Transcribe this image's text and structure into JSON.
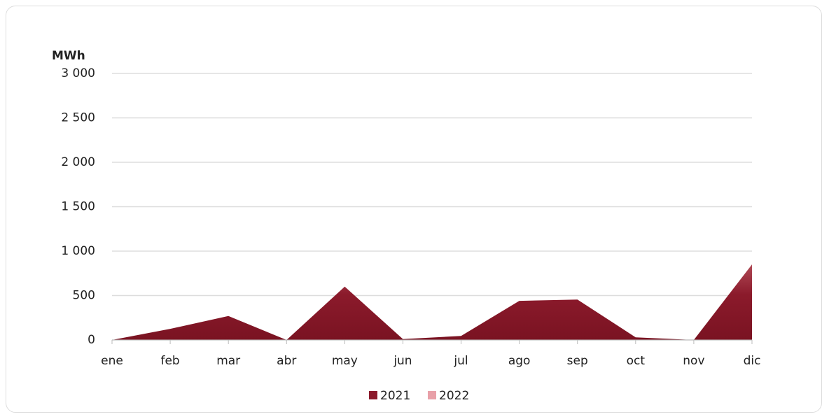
{
  "chart_data": {
    "type": "area",
    "y_label": "MWh",
    "categories": [
      "ene",
      "feb",
      "mar",
      "abr",
      "may",
      "jun",
      "jul",
      "ago",
      "sep",
      "oct",
      "nov",
      "dic"
    ],
    "series": [
      {
        "name": "2021",
        "color": "#8b1a2b",
        "values": [
          0,
          125,
          270,
          0,
          600,
          10,
          45,
          440,
          455,
          30,
          0,
          850
        ]
      },
      {
        "name": "2022",
        "color": "#e8a0a8",
        "values": [
          null,
          null,
          null,
          null,
          null,
          null,
          null,
          null,
          null,
          null,
          null,
          null
        ]
      }
    ],
    "ylim": [
      0,
      3000
    ],
    "yticks": [
      0,
      500,
      {
        "value": 1000,
        "label": "1 000"
      },
      {
        "value": 1500,
        "label": "1 500"
      },
      {
        "value": 2000,
        "label": "2 000"
      },
      {
        "value": 2500,
        "label": "2 500"
      },
      {
        "value": 3000,
        "label": "3 000"
      }
    ],
    "grid": true,
    "legend": "bottom"
  }
}
